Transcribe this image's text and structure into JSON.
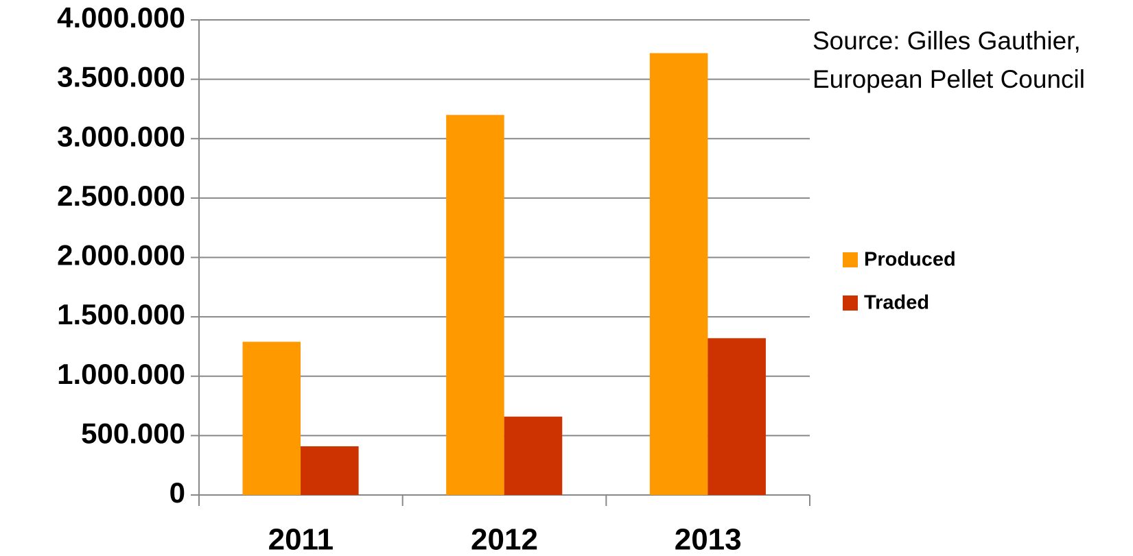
{
  "chart_data": {
    "type": "bar",
    "categories": [
      "2011",
      "2012",
      "2013"
    ],
    "series": [
      {
        "name": "Produced",
        "color": "#ff9900",
        "values": [
          1290000,
          3200000,
          3720000
        ]
      },
      {
        "name": "Traded",
        "color": "#cc3300",
        "values": [
          410000,
          660000,
          1320000
        ]
      }
    ],
    "ylim": [
      0,
      4000000
    ],
    "yticks": [
      0,
      {
        "value": 500000,
        "label": "500.000"
      },
      {
        "value": 1000000,
        "label": "1.000.000"
      },
      {
        "value": 1500000,
        "label": "1.500.000"
      },
      {
        "value": 2000000,
        "label": "2.000.000"
      },
      {
        "value": 2500000,
        "label": "2.500.000"
      },
      {
        "value": 3000000,
        "label": "3.000.000"
      },
      {
        "value": 3500000,
        "label": "3.500.000"
      },
      {
        "value": 4000000,
        "label": "4.000.000"
      }
    ],
    "grid": true,
    "legend": "right",
    "annotation": [
      "Source: Gilles Gauthier,",
      "European Pellet Council"
    ]
  }
}
